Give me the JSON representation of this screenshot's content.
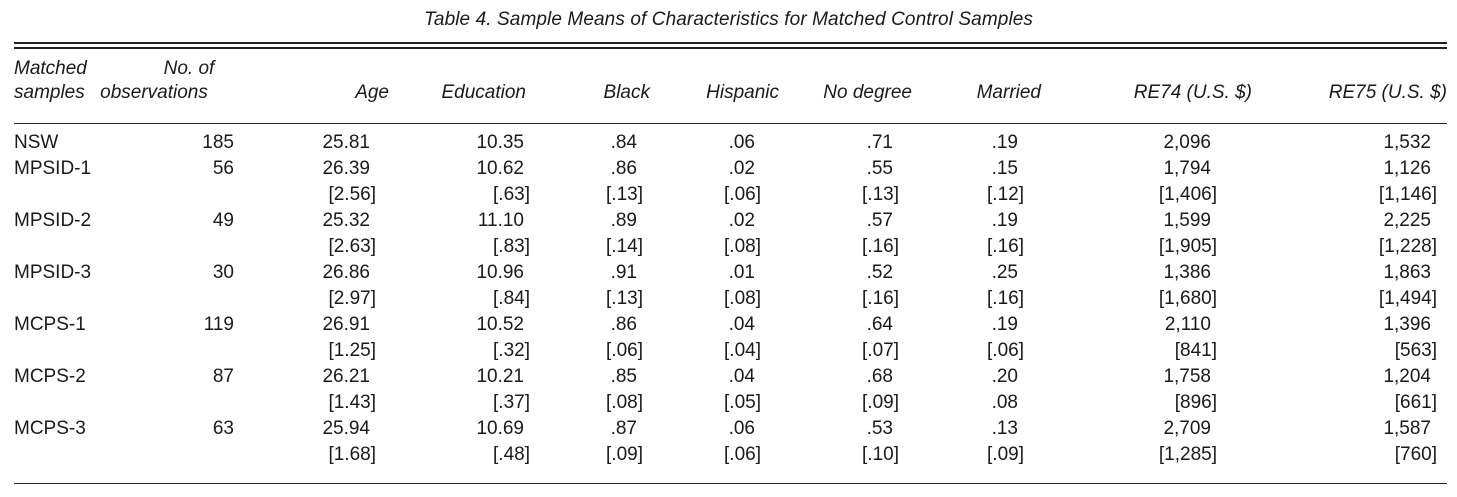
{
  "caption": "Table 4.  Sample Means of Characteristics for Matched Control Samples",
  "headers": {
    "samples": [
      "Matched",
      "samples"
    ],
    "observations": [
      "No. of",
      "observations"
    ],
    "age": "Age",
    "education": "Education",
    "black": "Black",
    "hispanic": "Hispanic",
    "no_degree": "No degree",
    "married": "Married",
    "re74": "RE74 (U.S. $)",
    "re75": "RE75 (U.S. $)"
  },
  "rows": [
    {
      "name": "NSW",
      "obs": "185",
      "age": "25.81",
      "education": "10.35",
      "black": ".84",
      "hispanic": ".06",
      "no_degree": ".71",
      "married": ".19",
      "re74": "2,096",
      "re75": "1,532",
      "se": null
    },
    {
      "name": "MPSID-1",
      "obs": "56",
      "age": "26.39",
      "education": "10.62",
      "black": ".86",
      "hispanic": ".02",
      "no_degree": ".55",
      "married": ".15",
      "re74": "1,794",
      "re75": "1,126",
      "se": {
        "age": "[2.56]",
        "education": "[.63]",
        "black": "[.13]",
        "hispanic": "[.06]",
        "no_degree": "[.13]",
        "married": "[.12]",
        "re74": "[1,406]",
        "re75": "[1,146]"
      }
    },
    {
      "name": "MPSID-2",
      "obs": "49",
      "age": "25.32",
      "education": "11.10",
      "black": ".89",
      "hispanic": ".02",
      "no_degree": ".57",
      "married": ".19",
      "re74": "1,599",
      "re75": "2,225",
      "se": {
        "age": "[2.63]",
        "education": "[.83]",
        "black": "[.14]",
        "hispanic": "[.08]",
        "no_degree": "[.16]",
        "married": "[.16]",
        "re74": "[1,905]",
        "re75": "[1,228]"
      }
    },
    {
      "name": "MPSID-3",
      "obs": "30",
      "age": "26.86",
      "education": "10.96",
      "black": ".91",
      "hispanic": ".01",
      "no_degree": ".52",
      "married": ".25",
      "re74": "1,386",
      "re75": "1,863",
      "se": {
        "age": "[2.97]",
        "education": "[.84]",
        "black": "[.13]",
        "hispanic": "[.08]",
        "no_degree": "[.16]",
        "married": "[.16]",
        "re74": "[1,680]",
        "re75": "[1,494]"
      }
    },
    {
      "name": "MCPS-1",
      "obs": "119",
      "age": "26.91",
      "education": "10.52",
      "black": ".86",
      "hispanic": ".04",
      "no_degree": ".64",
      "married": ".19",
      "re74": "2,110",
      "re75": "1,396",
      "se": {
        "age": "[1.25]",
        "education": "[.32]",
        "black": "[.06]",
        "hispanic": "[.04]",
        "no_degree": "[.07]",
        "married": "[.06]",
        "re74": "[841]",
        "re75": "[563]"
      }
    },
    {
      "name": "MCPS-2",
      "obs": "87",
      "age": "26.21",
      "education": "10.21",
      "black": ".85",
      "hispanic": ".04",
      "no_degree": ".68",
      "married": ".20",
      "re74": "1,758",
      "re75": "1,204",
      "se": {
        "age": "[1.43]",
        "education": "[.37]",
        "black": "[.08]",
        "hispanic": "[.05]",
        "no_degree": "[.09]",
        "married": ".08",
        "re74": "[896]",
        "re75": "[661]"
      }
    },
    {
      "name": "MCPS-3",
      "obs": "63",
      "age": "25.94",
      "education": "10.69",
      "black": ".87",
      "hispanic": ".06",
      "no_degree": ".53",
      "married": ".13",
      "re74": "2,709",
      "re75": "1,587",
      "se": {
        "age": "[1.68]",
        "education": "[.48]",
        "black": "[.09]",
        "hispanic": "[.06]",
        "no_degree": "[.10]",
        "married": "[.09]",
        "re74": "[1,285]",
        "re75": "[760]"
      }
    }
  ]
}
